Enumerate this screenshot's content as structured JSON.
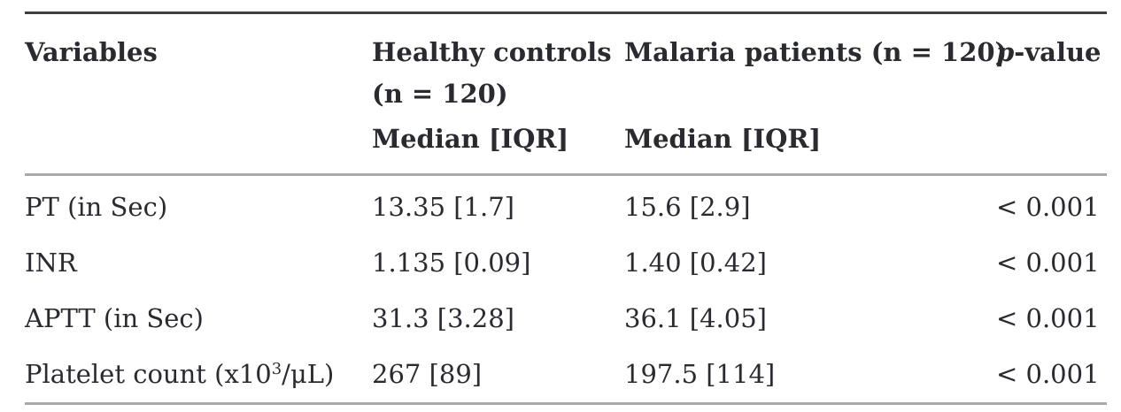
{
  "table": {
    "header": {
      "variables": "Variables",
      "healthy_line1": "Healthy controls",
      "healthy_line2": "(n = 120)",
      "malaria": "Malaria patients (n = 120)",
      "p_italic": "p",
      "p_suffix": "-value"
    },
    "subheader": {
      "healthy": "Median [IQR]",
      "malaria": "Median [IQR]"
    },
    "rows": [
      {
        "variable": "PT (in Sec)",
        "healthy": "13.35 [1.7]",
        "malaria": "15.6 [2.9]",
        "p_value": "< 0.001"
      },
      {
        "variable": "INR",
        "healthy": "1.135 [0.09]",
        "malaria": "1.40 [0.42]",
        "p_value": "< 0.001"
      },
      {
        "variable": "APTT (in Sec)",
        "healthy": "31.3 [3.28]",
        "malaria": "36.1 [4.05]",
        "p_value": "< 0.001"
      },
      {
        "variable": "Platelet count (x10³/μL)",
        "variable_prefix": "Platelet count (x10",
        "variable_sup": "3",
        "variable_suffix": "/μL)",
        "healthy": "267 [89]",
        "malaria": "197.5 [114]",
        "p_value": "< 0.001"
      }
    ],
    "colors": {
      "text": "#2a2a31",
      "top_rule": "#3f3f3f",
      "gray_rule": "#a9a9a9",
      "background": "#ffffff"
    }
  }
}
